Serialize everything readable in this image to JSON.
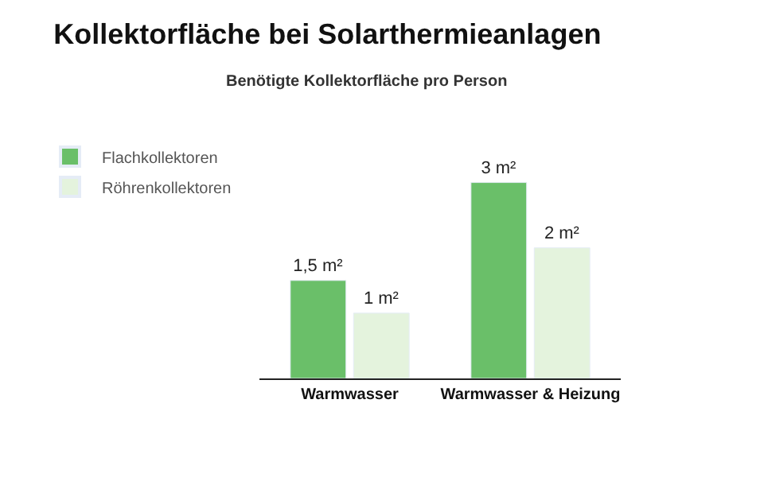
{
  "chart_data": {
    "type": "bar",
    "title": "Kollektorfläche bei Solarthermieanlagen",
    "subtitle": "Benötigte Kollektorfläche pro Person",
    "categories": [
      "Warmwasser",
      "Warmwasser & Heizung"
    ],
    "series": [
      {
        "name": "Flachkollektoren",
        "color": "#6abf69",
        "values": [
          1.5,
          3
        ],
        "value_labels": [
          "1,5 m²",
          "3 m²"
        ]
      },
      {
        "name": "Röhrenkollektoren",
        "color": "#e4f3dd",
        "values": [
          1,
          2
        ],
        "value_labels": [
          "1 m²",
          "2 m²"
        ]
      }
    ],
    "legend": "top left"
  }
}
